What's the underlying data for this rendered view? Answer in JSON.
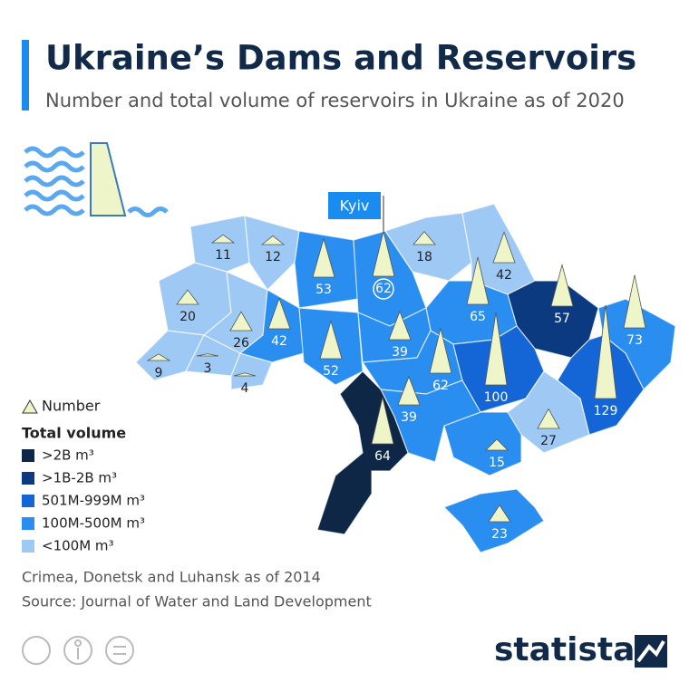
{
  "title": "Ukraine’s Dams and Reservoirs",
  "subtitle": "Number and total volume of reservoirs in Ukraine as of 2020",
  "capital_label": "Kyiv",
  "legend": {
    "number_label": "Number",
    "volume_title": "Total volume",
    "volume_classes": [
      {
        "label": ">2B m³",
        "color": "#0f2746"
      },
      {
        "label": ">1B-2B m³",
        "color": "#0b3a80"
      },
      {
        "label": "501M-999M m³",
        "color": "#1466d6"
      },
      {
        "label": "100M-500M m³",
        "color": "#2a8ef0"
      },
      {
        "label": "<100M m³",
        "color": "#9fc9f5"
      }
    ]
  },
  "regions": [
    {
      "number": 11,
      "volume_class": 4
    },
    {
      "number": 12,
      "volume_class": 4
    },
    {
      "number": 53,
      "volume_class": 3
    },
    {
      "number": 62,
      "volume_class": 3,
      "capital": true
    },
    {
      "number": 18,
      "volume_class": 4
    },
    {
      "number": 42,
      "volume_class": 4
    },
    {
      "number": 57,
      "volume_class": 1
    },
    {
      "number": 73,
      "volume_class": 3
    },
    {
      "number": 65,
      "volume_class": 3
    },
    {
      "number": 20,
      "volume_class": 4
    },
    {
      "number": 26,
      "volume_class": 4
    },
    {
      "number": 9,
      "volume_class": 4
    },
    {
      "number": 3,
      "volume_class": 4
    },
    {
      "number": 4,
      "volume_class": 4
    },
    {
      "number": 42,
      "volume_class": 3
    },
    {
      "number": 52,
      "volume_class": 3
    },
    {
      "number": 39,
      "volume_class": 3
    },
    {
      "number": 62,
      "volume_class": 3
    },
    {
      "number": 100,
      "volume_class": 2
    },
    {
      "number": 129,
      "volume_class": 2
    },
    {
      "number": 27,
      "volume_class": 4
    },
    {
      "number": 15,
      "volume_class": 3
    },
    {
      "number": 39,
      "volume_class": 3
    },
    {
      "number": 64,
      "volume_class": 0
    },
    {
      "number": 23,
      "volume_class": 3
    }
  ],
  "notes": [
    "Crimea, Donetsk and Luhansk as of 2014",
    "Source: Journal of Water and Land Development"
  ],
  "brand": "statista"
}
